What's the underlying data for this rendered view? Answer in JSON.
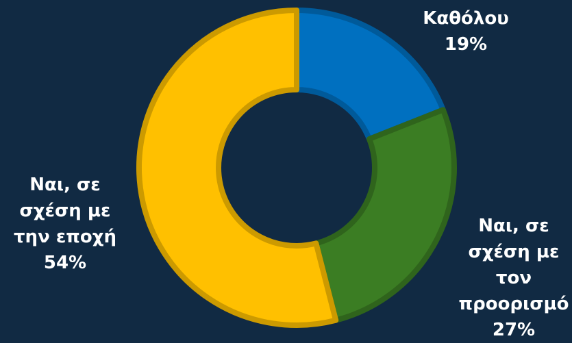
{
  "chart_data": {
    "type": "donut",
    "categories": [
      "Καθόλου",
      "Ναι, σε σχέση με τον προορισμό",
      "Ναι, σε σχέση με την εποχή"
    ],
    "values": [
      19,
      27,
      54
    ],
    "value_labels": [
      "19%",
      "27%",
      "54%"
    ],
    "colors": [
      "#0070c0",
      "#3b7d23",
      "#ffc000"
    ]
  }
}
